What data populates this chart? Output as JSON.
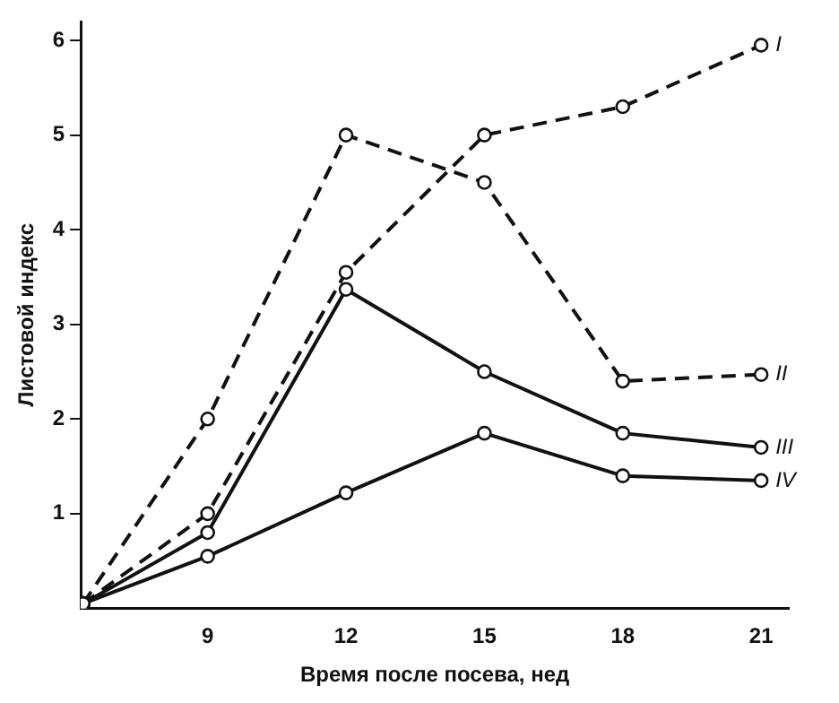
{
  "chart_data": {
    "type": "line",
    "xlabel": "Время после посева, нед",
    "ylabel": "Листовой индекс",
    "x": [
      6.3,
      9,
      12,
      15,
      18,
      21
    ],
    "xlim": [
      6.25,
      21.6
    ],
    "xticks": [
      9,
      12,
      15,
      18,
      21
    ],
    "ylim": [
      0,
      6.2
    ],
    "yticks": [
      1,
      2,
      3,
      4,
      5,
      6
    ],
    "grid": false,
    "legend": false,
    "marker": "circle",
    "series": [
      {
        "name": "I",
        "color": "#111111",
        "line_style": "dashed",
        "values": [
          0.05,
          1.0,
          3.55,
          5.0,
          5.3,
          5.95
        ]
      },
      {
        "name": "II",
        "color": "#111111",
        "line_style": "dashed",
        "values": [
          0.05,
          2.0,
          5.0,
          4.5,
          2.4,
          2.47
        ]
      },
      {
        "name": "III",
        "color": "#111111",
        "line_style": "solid",
        "values": [
          0.05,
          0.8,
          3.37,
          2.5,
          1.85,
          1.7
        ]
      },
      {
        "name": "IV",
        "color": "#111111",
        "line_style": "solid",
        "values": [
          0.05,
          0.55,
          1.22,
          1.85,
          1.4,
          1.35
        ]
      }
    ]
  }
}
